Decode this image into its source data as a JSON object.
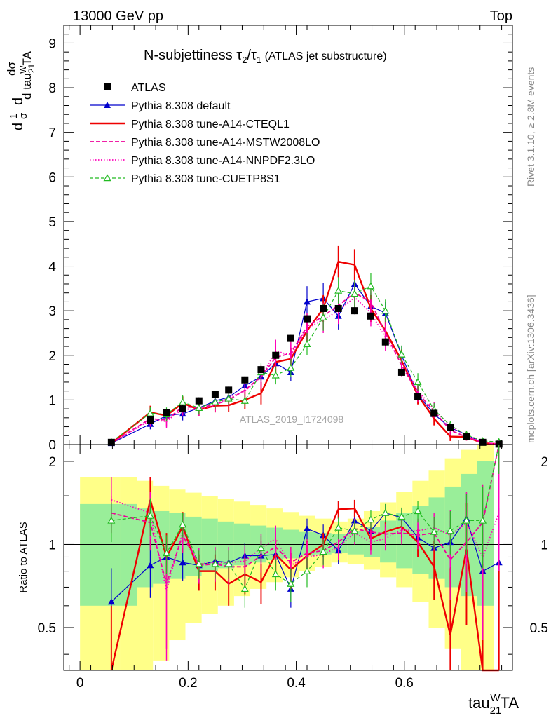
{
  "header": {
    "left": "13000 GeV pp",
    "right": "Top"
  },
  "side_labels": {
    "rivet": "Rivet 3.1.10, ≥ 2.8M events",
    "mcplots": "mcplots.cern.ch [arXiv:1306.3436]"
  },
  "watermark": "ATLAS_2019_I1724098",
  "chart_data": {
    "type": "line",
    "title": {
      "main": "N-subjettiness ",
      "tau": "τ",
      "sub2": "2",
      "slash": "/",
      "sub1": "1",
      "suffix": " (ATLAS jet substructure)"
    },
    "xlabel": {
      "base": "tau",
      "sup": "W",
      "sub": "21",
      "suffix": "TA"
    },
    "ylabel": {
      "d1": "d",
      "one": "1",
      "sigma": "σ",
      "d2": "d",
      "dsig": "dσ",
      "dtau": "d tau",
      "sup": "W",
      "sub": "21",
      "suffix": "TA"
    },
    "ratio_ylabel": "Ratio to ATLAS",
    "xlim": [
      -0.03,
      0.8
    ],
    "ylim_main": [
      0,
      9.4
    ],
    "ylim_ratio": [
      0.35,
      2.3
    ],
    "x_ticks": [
      0,
      0.2,
      0.4,
      0.6
    ],
    "x_tick_labels": [
      "0",
      "0.2",
      "0.4",
      "0.6"
    ],
    "y_ticks_main": [
      0,
      1,
      2,
      3,
      4,
      5,
      6,
      7,
      8,
      9
    ],
    "y_tick_labels_main": [
      "0",
      "1",
      "2",
      "3",
      "4",
      "5",
      "6",
      "7",
      "8",
      "9"
    ],
    "y_ticks_ratio": [
      0.5,
      1,
      2
    ],
    "y_tick_labels_ratio": [
      "0.5",
      "1",
      "2"
    ],
    "legend": {
      "placement": "top-left"
    },
    "x": [
      0.058,
      0.13,
      0.16,
      0.19,
      0.22,
      0.25,
      0.275,
      0.305,
      0.335,
      0.362,
      0.39,
      0.42,
      0.45,
      0.478,
      0.508,
      0.538,
      0.565,
      0.595,
      0.625,
      0.655,
      0.685,
      0.715,
      0.745,
      0.775
    ],
    "data": {
      "name": "ATLAS",
      "color": "#000000",
      "values": [
        0.05,
        0.55,
        0.72,
        0.8,
        0.98,
        1.12,
        1.22,
        1.45,
        1.68,
        2.0,
        2.38,
        2.82,
        3.05,
        3.05,
        3.0,
        2.88,
        2.3,
        1.62,
        1.07,
        0.7,
        0.38,
        0.18,
        0.05,
        0.01
      ],
      "errors": [
        0.04,
        0.08,
        0.08,
        0.08,
        0.08,
        0.08,
        0.08,
        0.08,
        0.08,
        0.08,
        0.08,
        0.08,
        0.08,
        0.08,
        0.08,
        0.08,
        0.08,
        0.08,
        0.08,
        0.08,
        0.05,
        0.04,
        0.03,
        0.02
      ]
    },
    "bands": {
      "inner_color": "#99ee99",
      "outer_color": "#ffff88",
      "edges": [
        0.0,
        0.075,
        0.105,
        0.135,
        0.165,
        0.195,
        0.225,
        0.255,
        0.285,
        0.315,
        0.345,
        0.375,
        0.405,
        0.435,
        0.465,
        0.495,
        0.525,
        0.555,
        0.585,
        0.615,
        0.645,
        0.675,
        0.705,
        0.735,
        0.765
      ],
      "inner": [
        [
          0.6,
          1.4
        ],
        [
          0.6,
          1.4
        ],
        [
          0.7,
          1.35
        ],
        [
          0.72,
          1.32
        ],
        [
          0.75,
          1.3
        ],
        [
          0.77,
          1.26
        ],
        [
          0.8,
          1.24
        ],
        [
          0.82,
          1.21
        ],
        [
          0.84,
          1.19
        ],
        [
          0.86,
          1.17
        ],
        [
          0.88,
          1.15
        ],
        [
          0.89,
          1.13
        ],
        [
          0.91,
          1.11
        ],
        [
          0.92,
          1.1
        ],
        [
          0.93,
          1.09
        ],
        [
          0.92,
          1.12
        ],
        [
          0.9,
          1.16
        ],
        [
          0.86,
          1.22
        ],
        [
          0.82,
          1.3
        ],
        [
          0.78,
          1.38
        ],
        [
          0.75,
          1.48
        ],
        [
          0.7,
          1.62
        ],
        [
          0.65,
          1.8
        ],
        [
          0.6,
          2.0
        ]
      ],
      "outer": [
        [
          0.35,
          1.75
        ],
        [
          0.35,
          1.75
        ],
        [
          0.35,
          1.7
        ],
        [
          0.38,
          1.63
        ],
        [
          0.45,
          1.58
        ],
        [
          0.52,
          1.54
        ],
        [
          0.56,
          1.5
        ],
        [
          0.6,
          1.46
        ],
        [
          0.65,
          1.43
        ],
        [
          0.69,
          1.39
        ],
        [
          0.73,
          1.35
        ],
        [
          0.76,
          1.31
        ],
        [
          0.8,
          1.27
        ],
        [
          0.83,
          1.24
        ],
        [
          0.86,
          1.21
        ],
        [
          0.85,
          1.24
        ],
        [
          0.81,
          1.32
        ],
        [
          0.76,
          1.42
        ],
        [
          0.7,
          1.55
        ],
        [
          0.62,
          1.7
        ],
        [
          0.5,
          1.85
        ],
        [
          0.42,
          2.05
        ],
        [
          0.35,
          2.2
        ],
        [
          0.35,
          2.3
        ]
      ]
    },
    "series": [
      {
        "name": "Pythia 8.308 default",
        "color": "#0000cc",
        "width": 1.2,
        "dash": "",
        "marker": "triangle-filled",
        "values": [
          0.03,
          0.46,
          0.65,
          0.69,
          0.82,
          0.98,
          1.06,
          1.32,
          1.52,
          1.82,
          1.62,
          3.2,
          3.28,
          2.88,
          3.6,
          3.1,
          2.95,
          2.0,
          1.12,
          0.68,
          0.38,
          0.22,
          0.04,
          0.01
        ],
        "errors": [
          0.02,
          0.12,
          0.12,
          0.15,
          0.15,
          0.15,
          0.15,
          0.15,
          0.2,
          0.2,
          0.2,
          0.35,
          0.35,
          0.3,
          0.3,
          0.3,
          0.25,
          0.2,
          0.15,
          0.12,
          0.08,
          0.06,
          0.04,
          0.02
        ],
        "ratio": [
          0.62,
          0.84,
          0.9,
          0.86,
          0.84,
          0.87,
          0.86,
          0.91,
          0.91,
          0.92,
          0.69,
          1.14,
          1.08,
          0.95,
          1.22,
          1.12,
          1.3,
          1.25,
          1.06,
          0.97,
          1.02,
          1.24,
          0.8,
          0.86
        ],
        "ratio_err": [
          0.2,
          0.2,
          0.15,
          0.12,
          0.1,
          0.1,
          0.1,
          0.1,
          0.1,
          0.1,
          0.1,
          0.1,
          0.1,
          0.1,
          0.1,
          0.1,
          0.1,
          0.1,
          0.12,
          0.15,
          0.2,
          0.3,
          0.4,
          0.5
        ]
      },
      {
        "name": "Pythia 8.308 tune-A14-CTEQL1",
        "color": "#ee0000",
        "width": 2.4,
        "dash": "",
        "marker": "none",
        "values": [
          0.03,
          0.72,
          0.65,
          0.93,
          0.78,
          0.87,
          0.88,
          1.0,
          1.15,
          1.85,
          1.92,
          2.55,
          3.05,
          4.1,
          4.03,
          3.05,
          2.55,
          1.88,
          1.1,
          0.58,
          0.18,
          0.17,
          0.03,
          0.01
        ],
        "errors": [
          0.02,
          0.15,
          0.15,
          0.15,
          0.15,
          0.15,
          0.15,
          0.2,
          0.25,
          0.25,
          0.25,
          0.3,
          0.3,
          0.35,
          0.35,
          0.3,
          0.3,
          0.25,
          0.2,
          0.15,
          0.1,
          0.08,
          0.05,
          0.02
        ],
        "ratio": [
          0.35,
          1.45,
          0.9,
          1.16,
          0.8,
          0.8,
          0.72,
          0.78,
          0.73,
          0.92,
          0.81,
          0.91,
          1.0,
          1.34,
          1.35,
          1.05,
          1.11,
          1.16,
          1.02,
          0.83,
          0.47,
          0.96,
          0.35,
          0.35
        ],
        "ratio_err": [
          0.25,
          0.3,
          0.2,
          0.15,
          0.12,
          0.12,
          0.12,
          0.12,
          0.12,
          0.12,
          0.12,
          0.12,
          0.1,
          0.1,
          0.1,
          0.1,
          0.1,
          0.1,
          0.12,
          0.2,
          0.35,
          0.45,
          0.5,
          0.5
        ]
      },
      {
        "name": "Pythia 8.308 tune-A14-MSTW2008LO",
        "color": "#ee0099",
        "width": 1.8,
        "dash": "6,3",
        "marker": "none",
        "values": [
          0.03,
          0.58,
          0.55,
          0.85,
          0.82,
          0.9,
          1.0,
          1.22,
          1.52,
          1.95,
          2.05,
          2.65,
          2.88,
          3.12,
          3.4,
          3.2,
          2.5,
          1.78,
          1.15,
          0.75,
          0.32,
          0.17,
          0.04,
          0.01
        ],
        "errors": [
          0.02,
          0.15,
          0.15,
          0.15,
          0.15,
          0.15,
          0.15,
          0.2,
          0.25,
          0.25,
          0.25,
          0.3,
          0.3,
          0.3,
          0.3,
          0.3,
          0.3,
          0.25,
          0.2,
          0.15,
          0.1,
          0.08,
          0.05,
          0.02
        ],
        "ratio": [
          1.3,
          1.2,
          0.72,
          1.08,
          0.84,
          0.85,
          0.83,
          0.83,
          0.91,
          0.98,
          0.86,
          0.93,
          0.95,
          1.02,
          1.14,
          1.11,
          1.09,
          1.1,
          1.08,
          1.1,
          0.88,
          1.02,
          1.2,
          2.3
        ],
        "ratio_err": [
          0.2,
          0.25,
          0.3,
          0.15,
          0.12,
          0.12,
          0.12,
          0.12,
          0.12,
          0.12,
          0.12,
          0.12,
          0.1,
          0.1,
          0.1,
          0.1,
          0.1,
          0.1,
          0.12,
          0.15,
          0.25,
          0.35,
          0.45,
          0.5
        ]
      },
      {
        "name": "Pythia 8.308 tune-A14-NNPDF2.3LO",
        "color": "#ff00bb",
        "width": 1.8,
        "dash": "1.5,2.5",
        "marker": "none",
        "values": [
          0.03,
          0.55,
          0.52,
          0.8,
          0.78,
          0.88,
          1.05,
          1.2,
          1.5,
          2.1,
          2.0,
          2.6,
          2.8,
          3.0,
          3.3,
          2.95,
          2.4,
          1.85,
          1.2,
          0.8,
          0.4,
          0.22,
          0.05,
          0.01
        ],
        "errors": [
          0.02,
          0.15,
          0.15,
          0.15,
          0.15,
          0.15,
          0.15,
          0.2,
          0.25,
          0.25,
          0.25,
          0.3,
          0.3,
          0.3,
          0.3,
          0.3,
          0.3,
          0.25,
          0.2,
          0.15,
          0.1,
          0.08,
          0.05,
          0.02
        ],
        "ratio": [
          1.45,
          1.3,
          0.68,
          1.12,
          0.85,
          0.86,
          0.86,
          0.87,
          0.97,
          1.05,
          0.84,
          0.9,
          0.92,
          0.98,
          1.1,
          1.02,
          1.05,
          1.13,
          1.12,
          1.15,
          1.08,
          1.2,
          0.9,
          1.3
        ],
        "ratio_err": [
          0.3,
          0.25,
          0.3,
          0.15,
          0.12,
          0.12,
          0.12,
          0.12,
          0.12,
          0.12,
          0.12,
          0.12,
          0.1,
          0.1,
          0.1,
          0.1,
          0.1,
          0.1,
          0.12,
          0.15,
          0.25,
          0.35,
          0.45,
          0.5
        ]
      },
      {
        "name": "Pythia 8.308 tune-CUETP8S1",
        "color": "#22bb22",
        "width": 1.2,
        "dash": "5,3",
        "marker": "triangle-open",
        "values": [
          0.06,
          0.7,
          0.68,
          0.95,
          0.82,
          0.95,
          1.03,
          0.98,
          1.62,
          1.55,
          1.72,
          2.25,
          2.85,
          3.45,
          3.38,
          3.55,
          3.0,
          2.02,
          1.4,
          0.78,
          0.43,
          0.22,
          0.08,
          0.06
        ],
        "errors": [
          0.03,
          0.15,
          0.15,
          0.15,
          0.15,
          0.15,
          0.15,
          0.15,
          0.2,
          0.2,
          0.2,
          0.25,
          0.3,
          0.3,
          0.3,
          0.3,
          0.25,
          0.2,
          0.2,
          0.15,
          0.1,
          0.08,
          0.05,
          0.03
        ],
        "ratio": [
          1.22,
          1.27,
          0.93,
          1.18,
          0.85,
          0.85,
          0.85,
          0.69,
          0.97,
          0.78,
          0.72,
          0.8,
          0.94,
          1.15,
          1.12,
          1.23,
          1.3,
          1.26,
          1.32,
          1.11,
          1.12,
          1.22,
          1.22,
          2.3
        ],
        "ratio_err": [
          0.2,
          0.2,
          0.15,
          0.12,
          0.1,
          0.1,
          0.1,
          0.1,
          0.1,
          0.1,
          0.1,
          0.1,
          0.1,
          0.1,
          0.1,
          0.1,
          0.1,
          0.1,
          0.12,
          0.15,
          0.2,
          0.3,
          0.4,
          0.5
        ]
      }
    ]
  }
}
